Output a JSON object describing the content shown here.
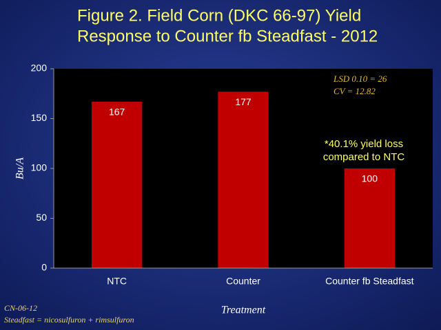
{
  "chart_data": {
    "type": "bar",
    "title": [
      "Figure 2. Field Corn (DKC 66-97) Yield",
      "Response to Counter fb Steadfast - 2012"
    ],
    "categories": [
      "NTC",
      "Counter",
      "Counter fb Steadfast"
    ],
    "values": [
      167,
      177,
      100
    ],
    "color": "#c00000",
    "ylim": [
      0,
      200
    ],
    "yticks": [
      0,
      50,
      100,
      150,
      200
    ],
    "y_label": "Bu/A",
    "x_label": "Treatment",
    "stats": [
      "LSD 0.10 = 26",
      "CV = 12.82"
    ],
    "annotation": [
      "*40.1% yield loss",
      "compared to NTC"
    ],
    "footnotes": [
      "CN-06-12",
      "Steadfast = nicosulfuron + rimsulfuron"
    ]
  }
}
